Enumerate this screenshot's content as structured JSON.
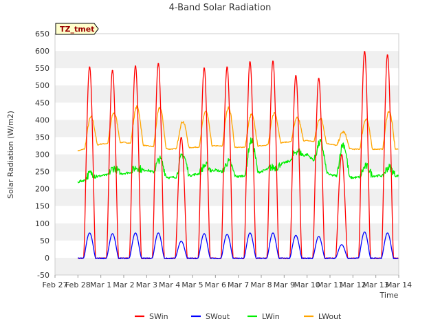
{
  "chart_data": {
    "type": "line",
    "title": "4-Band Solar Radiation",
    "xlabel": "Time",
    "ylabel": "Solar Radiation (W/m2)",
    "ylim": [
      -50,
      650
    ],
    "yticks": [
      -50,
      0,
      50,
      100,
      150,
      200,
      250,
      300,
      350,
      400,
      450,
      500,
      550,
      600,
      650
    ],
    "xlim_days": [
      "Feb 27",
      "Mar 14"
    ],
    "xtick_labels": [
      "Feb 27",
      "Feb 28",
      "Mar 1",
      "Mar 2",
      "Mar 3",
      "Mar 4",
      "Mar 5",
      "Mar 6",
      "Mar 7",
      "Mar 8",
      "Mar 9",
      "Mar 10",
      "Mar 11",
      "Mar 12",
      "Mar 13",
      "Mar 14"
    ],
    "grid": "horizontal bands",
    "legend_position": "bottom",
    "site_badge": "TZ_tmet",
    "days": [
      "Feb 28",
      "Mar 1",
      "Mar 2",
      "Mar 3",
      "Mar 4",
      "Mar 5",
      "Mar 6",
      "Mar 7",
      "Mar 8",
      "Mar 9",
      "Mar 10",
      "Mar 11",
      "Mar 12",
      "Mar 13"
    ],
    "series": [
      {
        "name": "SWin",
        "color": "#ff0000",
        "daily_peak": [
          555,
          545,
          558,
          565,
          350,
          552,
          555,
          570,
          572,
          530,
          522,
          300,
          600,
          590
        ]
      },
      {
        "name": "SWout",
        "color": "#0000ff",
        "daily_peak": [
          72,
          70,
          72,
          72,
          48,
          70,
          68,
          72,
          72,
          65,
          62,
          38,
          75,
          72
        ]
      },
      {
        "name": "LWin",
        "color": "#00ee00",
        "daily_night": [
          220,
          238,
          245,
          255,
          232,
          240,
          255,
          235,
          250,
          275,
          300,
          240,
          232,
          238
        ],
        "daily_peak": [
          245,
          260,
          262,
          285,
          298,
          268,
          278,
          340,
          262,
          310,
          335,
          330,
          265,
          262
        ]
      },
      {
        "name": "LWout",
        "color": "#ffa500",
        "daily_night": [
          310,
          330,
          335,
          325,
          315,
          320,
          325,
          320,
          325,
          335,
          340,
          330,
          315,
          315
        ],
        "daily_peak": [
          408,
          420,
          438,
          435,
          395,
          425,
          435,
          415,
          420,
          405,
          405,
          365,
          403,
          425
        ]
      }
    ]
  }
}
